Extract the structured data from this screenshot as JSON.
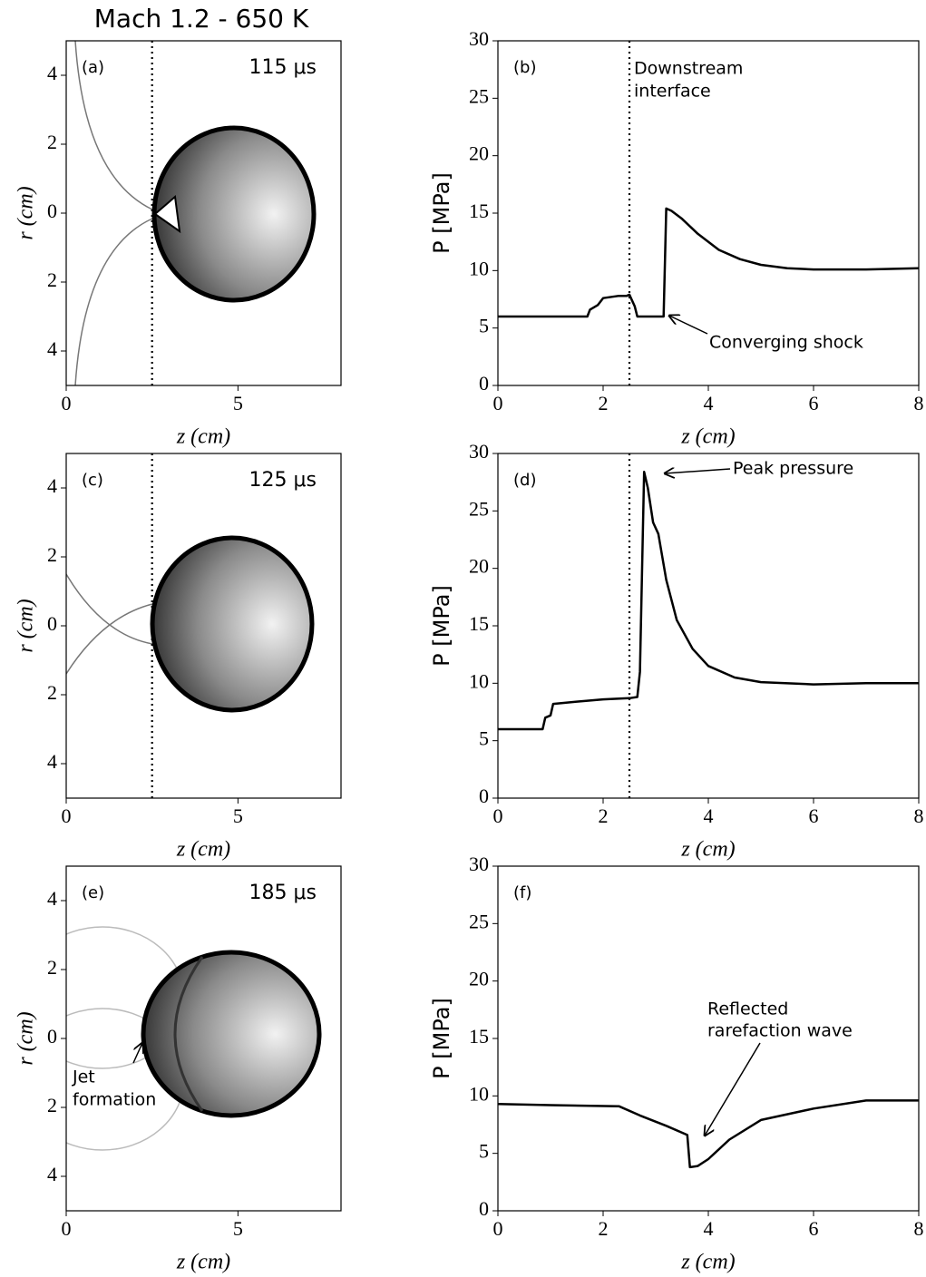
{
  "figure_title": "Mach 1.2 - 650 K",
  "chart_data": [
    {
      "type": "image",
      "panel_label": "(a)",
      "time": "115 μs",
      "xlabel": "z (cm)",
      "ylabel": "r (cm)",
      "xlim": [
        0,
        8
      ],
      "ylim": [
        -5,
        5
      ],
      "xticks": [
        0,
        5
      ],
      "yticks": [
        {
          "value": -4,
          "label": "4"
        },
        {
          "value": -2,
          "label": "2"
        },
        0,
        2,
        4
      ],
      "vlines": [
        2.5
      ]
    },
    {
      "type": "line",
      "panel_label": "(b)",
      "xlabel": "z (cm)",
      "ylabel": "P [MPa]",
      "xlim": [
        0,
        8
      ],
      "ylim": [
        0,
        30
      ],
      "xticks": [
        0,
        2,
        4,
        6,
        8
      ],
      "yticks": [
        0,
        5,
        10,
        15,
        20,
        25,
        30
      ],
      "vlines": [
        2.5
      ],
      "color": "#000000",
      "x": [
        0,
        1.7,
        1.75,
        1.9,
        2.0,
        2.3,
        2.45,
        2.5,
        2.55,
        2.6,
        2.65,
        3.15,
        3.2,
        3.3,
        3.5,
        3.8,
        4.2,
        4.6,
        5,
        5.5,
        6,
        7,
        8
      ],
      "values": [
        6,
        6,
        6.6,
        7,
        7.6,
        7.8,
        7.8,
        7.9,
        7.4,
        6.9,
        6,
        6,
        15.4,
        15.2,
        14.5,
        13.2,
        11.8,
        11,
        10.5,
        10.2,
        10.1,
        10.1,
        10.2
      ],
      "annotations": [
        {
          "lines": [
            "Downstream",
            "interface"
          ]
        },
        {
          "lines": [
            "Converging shock"
          ]
        }
      ]
    },
    {
      "type": "image",
      "panel_label": "(c)",
      "time": "125 μs",
      "xlabel": "z (cm)",
      "ylabel": "r (cm)",
      "xlim": [
        0,
        8
      ],
      "ylim": [
        -5,
        5
      ],
      "xticks": [
        0,
        5
      ],
      "yticks": [
        {
          "value": -4,
          "label": "4"
        },
        {
          "value": -2,
          "label": "2"
        },
        0,
        2,
        4
      ],
      "vlines": [
        2.5
      ]
    },
    {
      "type": "line",
      "panel_label": "(d)",
      "xlabel": "z (cm)",
      "ylabel": "P [MPa]",
      "xlim": [
        0,
        8
      ],
      "ylim": [
        0,
        30
      ],
      "xticks": [
        0,
        2,
        4,
        6,
        8
      ],
      "yticks": [
        0,
        5,
        10,
        15,
        20,
        25,
        30
      ],
      "vlines": [
        2.5
      ],
      "color": "#000000",
      "x": [
        0,
        0.85,
        0.9,
        1.0,
        1.05,
        1.5,
        2,
        2.5,
        2.65,
        2.7,
        2.78,
        2.85,
        2.95,
        3.05,
        3.2,
        3.4,
        3.7,
        4,
        4.5,
        5,
        6,
        7,
        8
      ],
      "values": [
        6,
        6,
        7,
        7.2,
        8.2,
        8.4,
        8.6,
        8.7,
        8.8,
        11,
        28.4,
        27,
        24,
        23,
        19,
        15.5,
        13,
        11.5,
        10.5,
        10.1,
        9.9,
        10,
        10
      ],
      "annotations": [
        {
          "lines": [
            "Peak pressure"
          ]
        }
      ]
    },
    {
      "type": "image",
      "panel_label": "(e)",
      "time": "185 μs",
      "xlabel": "z (cm)",
      "ylabel": "r (cm)",
      "xlim": [
        0,
        8
      ],
      "ylim": [
        -5,
        5
      ],
      "xticks": [
        0,
        5
      ],
      "yticks": [
        {
          "value": -4,
          "label": "4"
        },
        {
          "value": -2,
          "label": "2"
        },
        0,
        2,
        4
      ],
      "annotations": [
        {
          "lines": [
            "Jet",
            "formation"
          ]
        }
      ]
    },
    {
      "type": "line",
      "panel_label": "(f)",
      "xlabel": "z (cm)",
      "ylabel": "P [MPa]",
      "xlim": [
        0,
        8
      ],
      "ylim": [
        0,
        30
      ],
      "xticks": [
        0,
        2,
        4,
        6,
        8
      ],
      "yticks": [
        0,
        5,
        10,
        15,
        20,
        25,
        30
      ],
      "color": "#000000",
      "x": [
        0,
        1,
        2.3,
        2.7,
        3.2,
        3.6,
        3.65,
        3.8,
        4,
        4.4,
        5,
        6,
        7,
        8
      ],
      "values": [
        9.3,
        9.2,
        9.1,
        8.3,
        7.4,
        6.6,
        3.8,
        3.9,
        4.5,
        6.2,
        7.9,
        8.9,
        9.6,
        9.6
      ],
      "annotations": [
        {
          "lines": [
            "Reflected",
            "rarefaction wave"
          ]
        }
      ]
    }
  ]
}
